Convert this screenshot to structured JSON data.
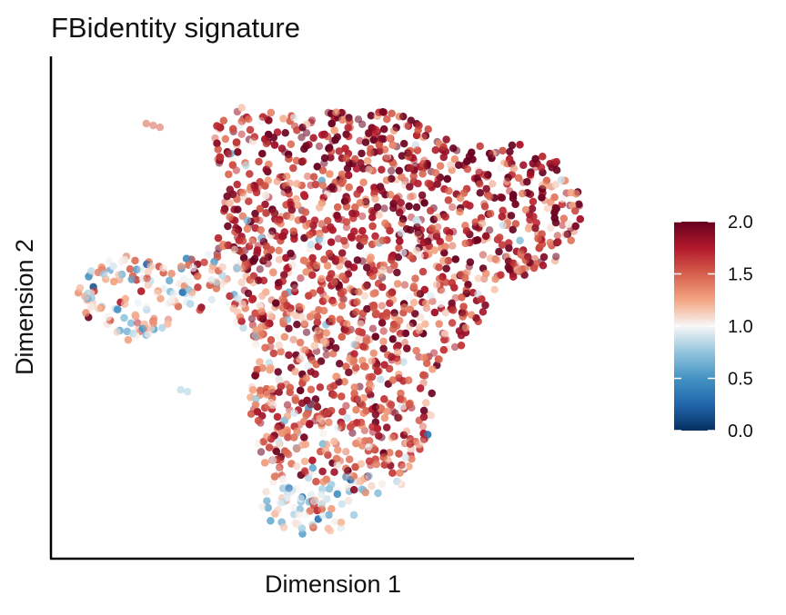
{
  "chart_data": {
    "type": "scatter",
    "title": "FBidentity signature",
    "xlabel": "Dimension 1",
    "ylabel": "Dimension 2",
    "x_ticks_shown": false,
    "y_ticks_shown": false,
    "grid": false,
    "point_alpha": 0.55,
    "legend": {
      "type": "colorbar",
      "placement": "right",
      "range": [
        0,
        2
      ],
      "ticks": [
        "2.0",
        "1.5",
        "1.0",
        "0.5",
        "0.0"
      ],
      "tick_values": [
        2.0,
        1.5,
        1.0,
        0.5,
        0.0
      ],
      "colorscale": [
        {
          "value": 0.0,
          "color": "#053061"
        },
        {
          "value": 0.25,
          "color": "#2166ac"
        },
        {
          "value": 0.5,
          "color": "#4393c3"
        },
        {
          "value": 0.75,
          "color": "#92c5de"
        },
        {
          "value": 1.0,
          "color": "#f7f7f7"
        },
        {
          "value": 1.25,
          "color": "#f4a582"
        },
        {
          "value": 1.5,
          "color": "#d6604d"
        },
        {
          "value": 1.75,
          "color": "#b2182b"
        },
        {
          "value": 2.0,
          "color": "#67001f"
        }
      ]
    },
    "clusters": [
      {
        "name": "main-body",
        "center": [
          0.55,
          0.58
        ],
        "size": [
          0.3,
          0.3
        ],
        "value_mean": 1.6,
        "density": 1.0
      },
      {
        "name": "upper-right-lobe",
        "center": [
          0.78,
          0.72
        ],
        "size": [
          0.14,
          0.14
        ],
        "value_mean": 1.7,
        "density": 0.8
      },
      {
        "name": "lower-extension",
        "center": [
          0.45,
          0.25
        ],
        "size": [
          0.12,
          0.18
        ],
        "value_mean": 1.1,
        "density": 0.5
      },
      {
        "name": "left-arm",
        "center": [
          0.13,
          0.52
        ],
        "size": [
          0.09,
          0.09
        ],
        "value_mean": 1.1,
        "density": 0.35
      },
      {
        "name": "small-island-top",
        "center": [
          0.16,
          0.88
        ],
        "size": [
          0.01,
          0.01
        ],
        "value_mean": 1.5,
        "density": 0.01
      },
      {
        "name": "small-island-left",
        "center": [
          0.22,
          0.33
        ],
        "size": [
          0.005,
          0.005
        ],
        "value_mean": 0.8,
        "density": 0.005
      }
    ]
  }
}
